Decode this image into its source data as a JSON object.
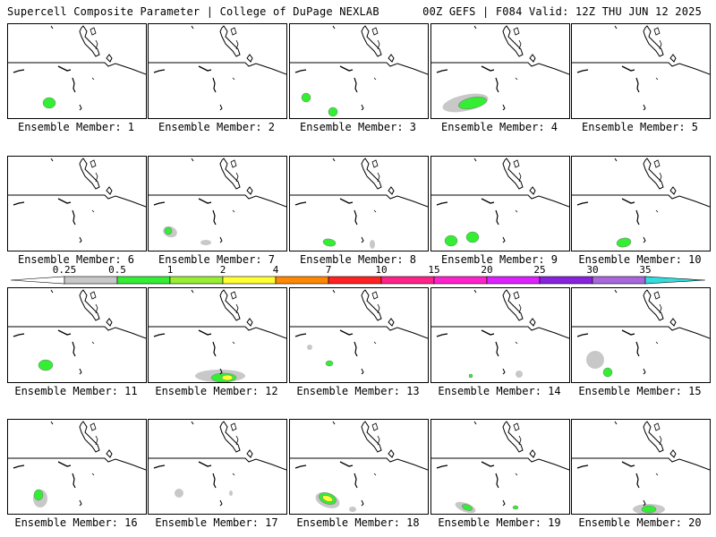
{
  "header": {
    "title_left": "Supercell Composite Parameter | College of DuPage NEXLAB",
    "title_right": "00Z GEFS | F084 Valid: 12Z THU JUN 12 2025"
  },
  "member_label_prefix": "Ensemble Member: ",
  "members": [
    "1",
    "2",
    "3",
    "4",
    "5",
    "6",
    "7",
    "8",
    "9",
    "10",
    "11",
    "12",
    "13",
    "14",
    "15",
    "16",
    "17",
    "18",
    "19",
    "20"
  ],
  "selected_member": "20",
  "colorbar": {
    "ticks": [
      "0.25",
      "0.5",
      "1",
      "2",
      "4",
      "7",
      "10",
      "15",
      "20",
      "25",
      "30",
      "35"
    ],
    "colors": [
      "#ffffff",
      "#c8c8c8",
      "#33ee33",
      "#99ee33",
      "#ffff33",
      "#ff8800",
      "#ff2222",
      "#ff2288",
      "#ff22cc",
      "#dd22ff",
      "#8822dd",
      "#aa66dd",
      "#33dddd"
    ]
  },
  "legend_colors": {
    "light": "#c8c8c8",
    "green": "#33ee33",
    "lime": "#99ee33",
    "yellow": "#ffff33"
  }
}
